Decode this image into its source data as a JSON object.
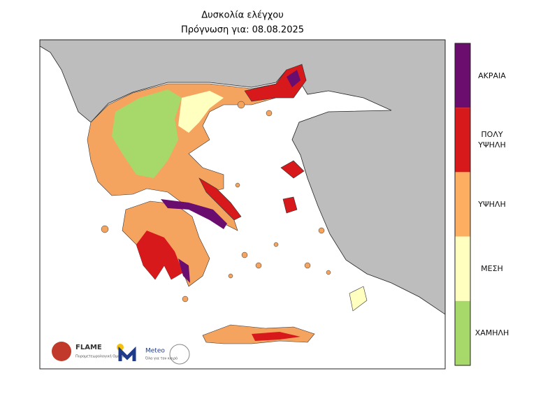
{
  "header": {
    "title": "Δυσκολία ελέγχου",
    "subtitle": "Πρόγνωση για: 08.08.2025"
  },
  "legend": {
    "items": [
      {
        "label": "ΑΚΡΑΙΑ",
        "color": "#6a0d6e"
      },
      {
        "label": "ΠΟΛΥ ΥΨΗΛΗ",
        "color": "#d7191c"
      },
      {
        "label": "ΥΨΗΛΗ",
        "color": "#fdae61"
      },
      {
        "label": "ΜΕΣΗ",
        "color": "#ffffbf"
      },
      {
        "label": "ΧΑΜΗΛΗ",
        "color": "#a6d96a"
      }
    ]
  },
  "logos": {
    "flame": {
      "name": "FLAME",
      "subtitle": "Πυρομετεωρολογική Ομάδα"
    },
    "meteo": {
      "name": "Meteo",
      "subtitle": "Όλα για τον καιρό"
    }
  }
}
